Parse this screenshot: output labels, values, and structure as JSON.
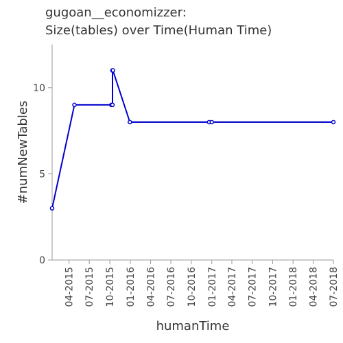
{
  "chart_data": {
    "type": "line",
    "title_lines": [
      "gugoan__economizzer:",
      "Size(tables) over Time(Human Time)"
    ],
    "xlabel": "humanTime",
    "ylabel": "#numNewTables",
    "x_ticks": [
      "04-2015",
      "07-2015",
      "10-2015",
      "01-2016",
      "04-2016",
      "07-2016",
      "10-2016",
      "01-2017",
      "04-2017",
      "07-2017",
      "10-2017",
      "01-2018",
      "04-2018",
      "07-2018"
    ],
    "y_ticks": [
      0,
      5,
      10
    ],
    "xlim": [
      "2015-01-15",
      "2018-07-01"
    ],
    "ylim": [
      0,
      12.5
    ],
    "grid": false,
    "color": "#0000cc",
    "series": [
      {
        "points": [
          {
            "x": "2015-01-15",
            "y": 3
          },
          {
            "x": "2015-04-25",
            "y": 9
          },
          {
            "x": "2015-10-08",
            "y": 9
          },
          {
            "x": "2015-10-13",
            "y": 9
          },
          {
            "x": "2015-10-13",
            "y": 11
          },
          {
            "x": "2015-10-15",
            "y": 11
          },
          {
            "x": "2015-12-30",
            "y": 8
          },
          {
            "x": "2016-12-20",
            "y": 8
          },
          {
            "x": "2017-01-01",
            "y": 8
          },
          {
            "x": "2018-07-01",
            "y": 8
          }
        ]
      }
    ]
  }
}
